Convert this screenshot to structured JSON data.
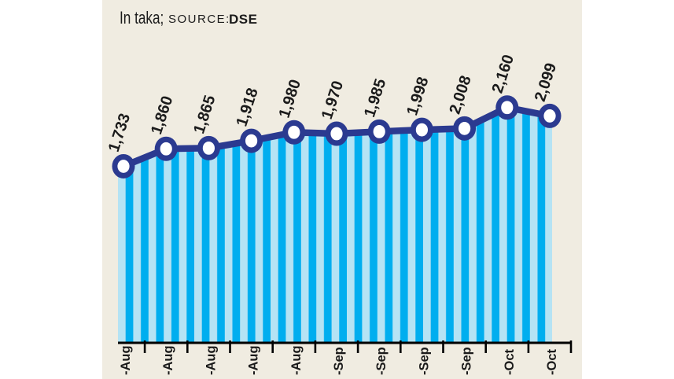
{
  "header": {
    "unit_label": "In taka;",
    "source_label": "SOURCE:",
    "source_value": "DSE"
  },
  "chart_data": {
    "type": "line",
    "title": "In taka; SOURCE: DSE",
    "categories": [
      "-Aug",
      "-Aug",
      "-Aug",
      "-Aug",
      "-Aug",
      "-Sep",
      "-Sep",
      "-Sep",
      "-Sep",
      "-Oct",
      "-Oct"
    ],
    "values": [
      1733,
      1860,
      1865,
      1918,
      1980,
      1970,
      1985,
      1998,
      2008,
      2160,
      2099
    ],
    "point_labels": [
      "1,733",
      "1,860",
      "1,865",
      "1,918",
      "1,980",
      "1,970",
      "1,985",
      "1,998",
      "2,008",
      "2,160",
      "2,099"
    ],
    "xlabel": "",
    "ylabel": "",
    "ylim": [
      450,
      2250
    ],
    "grid": false,
    "legend": false,
    "style": "line with circular markers over striped area fill, rotated data labels, x tick labels cropped at bottom edge",
    "colors": {
      "background": "#f0ece1",
      "stripe_dark": "#00aeef",
      "stripe_light": "#b5e3f4",
      "line": "#2b3a90",
      "marker_fill": "#ffffff",
      "axis": "#000000",
      "label_text": "#1b1b1b"
    }
  }
}
